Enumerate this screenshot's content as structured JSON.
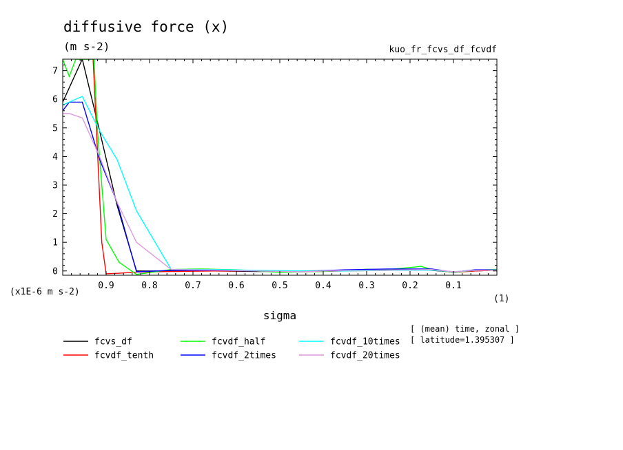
{
  "chart_data": {
    "type": "line",
    "title": "diffusive force (x)",
    "units": "(m s-2)",
    "top_right_label": "kuo_fr_fcvs_df_fcvdf",
    "xlabel": "sigma",
    "x_units": "(1)",
    "y_scale_label": "(x1E-6 m s-2)",
    "x_direction": "reversed",
    "xlim": [
      1.0,
      0.0
    ],
    "ylim": [
      -0.15,
      7.4
    ],
    "x_ticks": [
      0.9,
      0.8,
      0.7,
      0.6,
      0.5,
      0.4,
      0.3,
      0.2,
      0.1
    ],
    "x_tick_labels": [
      "0.9",
      "0.8",
      "0.7",
      "0.6",
      "0.5",
      "0.4",
      "0.3",
      "0.2",
      "0.1"
    ],
    "y_ticks": [
      0,
      1,
      2,
      3,
      4,
      5,
      6,
      7
    ],
    "y_tick_labels": [
      "0",
      "1",
      "2",
      "3",
      "4",
      "5",
      "6",
      "7"
    ],
    "grid": false,
    "legend_position": "bottom-left",
    "info_lines": [
      "[ (mean) time, zonal ]",
      "[ latitude=1.395307 ]"
    ],
    "series": [
      {
        "name": "fcvs_df",
        "color": "#000000",
        "x": [
          1.0,
          0.955,
          0.915,
          0.875,
          0.83,
          0.75,
          0.65,
          0.55,
          0.45,
          0.35,
          0.25,
          0.18,
          0.1,
          0.05,
          0.0
        ],
        "y": [
          5.9,
          7.4,
          4.9,
          2.3,
          0.0,
          0.0,
          0.0,
          -0.02,
          0.0,
          0.02,
          0.05,
          0.06,
          -0.04,
          0.0,
          0.03
        ]
      },
      {
        "name": "fcvdf_tenth",
        "color": "#ff0000",
        "x": [
          0.93,
          0.91,
          0.9,
          0.87,
          0.83,
          0.75,
          0.65,
          0.55,
          0.45,
          0.35,
          0.25,
          0.15,
          0.1,
          0.05,
          0.0
        ],
        "y": [
          7.4,
          1.0,
          -0.1,
          -0.08,
          -0.04,
          -0.02,
          0.0,
          0.0,
          -0.03,
          0.0,
          0.02,
          0.04,
          -0.05,
          0.0,
          0.03
        ]
      },
      {
        "name": "fcvdf_half",
        "color": "#00ff00",
        "x": [
          1.0,
          0.985,
          0.97,
          0.96,
          0.94,
          0.928,
          0.92,
          0.9,
          0.87,
          0.83,
          0.75,
          0.68,
          0.6,
          0.5,
          0.4,
          0.3,
          0.25,
          0.2,
          0.175,
          0.15,
          0.1,
          0.05,
          0.0
        ],
        "y": [
          7.4,
          6.8,
          7.4,
          7.4,
          7.4,
          7.4,
          4.9,
          1.1,
          0.3,
          -0.12,
          0.05,
          0.07,
          0.04,
          -0.05,
          -0.02,
          0.06,
          0.05,
          0.12,
          0.16,
          0.05,
          -0.05,
          0.02,
          0.06
        ]
      },
      {
        "name": "fcvdf_2times",
        "color": "#0000ff",
        "x": [
          1.0,
          0.985,
          0.955,
          0.915,
          0.875,
          0.83,
          0.75,
          0.65,
          0.55,
          0.45,
          0.35,
          0.25,
          0.15,
          0.1,
          0.05,
          0.0
        ],
        "y": [
          5.6,
          5.9,
          5.9,
          3.9,
          2.4,
          -0.03,
          0.02,
          0.02,
          0.0,
          -0.02,
          0.04,
          0.07,
          0.07,
          -0.04,
          0.04,
          0.04
        ]
      },
      {
        "name": "fcvdf_10times",
        "color": "#00ffff",
        "x": [
          1.0,
          0.955,
          0.915,
          0.875,
          0.83,
          0.75,
          0.65,
          0.55,
          0.45,
          0.35,
          0.25,
          0.15,
          0.1,
          0.05,
          0.0
        ],
        "y": [
          5.8,
          6.1,
          4.9,
          3.9,
          2.1,
          0.05,
          0.05,
          0.02,
          0.0,
          0.0,
          0.02,
          0.03,
          -0.03,
          0.02,
          0.03
        ]
      },
      {
        "name": "fcvdf_20times",
        "color": "#dd99dd",
        "x": [
          1.0,
          0.985,
          0.955,
          0.915,
          0.875,
          0.83,
          0.75,
          0.65,
          0.55,
          0.45,
          0.35,
          0.25,
          0.15,
          0.1,
          0.05,
          0.0
        ],
        "y": [
          5.5,
          5.5,
          5.35,
          4.0,
          2.4,
          1.0,
          0.05,
          0.03,
          0.0,
          -0.03,
          0.02,
          0.03,
          0.05,
          -0.03,
          0.02,
          0.03
        ]
      }
    ]
  }
}
